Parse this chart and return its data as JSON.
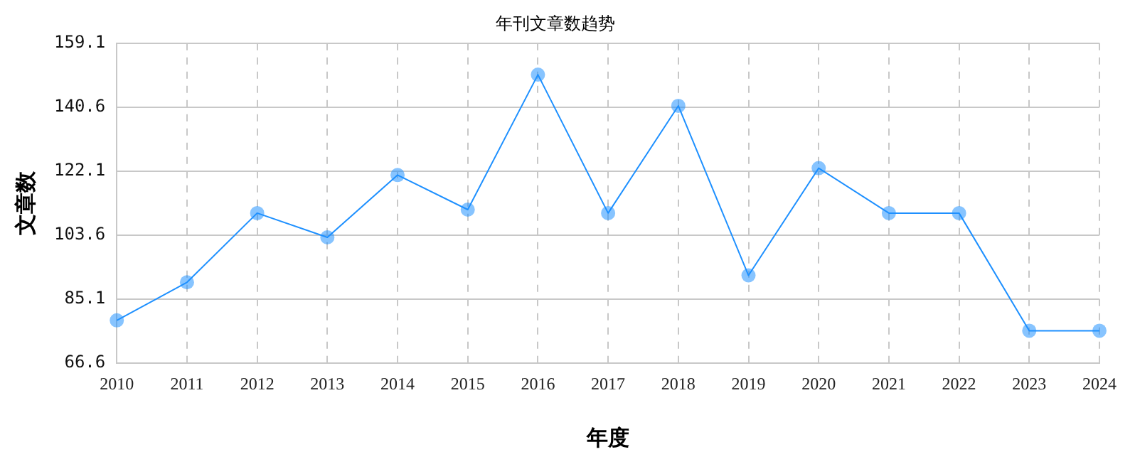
{
  "chart_data": {
    "type": "line",
    "title": "年刊文章数趋势",
    "xlabel": "年度",
    "ylabel": "文章数",
    "categories": [
      "2010",
      "2011",
      "2012",
      "2013",
      "2014",
      "2015",
      "2016",
      "2017",
      "2018",
      "2019",
      "2020",
      "2021",
      "2022",
      "2023",
      "2024"
    ],
    "series": [
      {
        "color": "#1e90ff",
        "values": [
          79,
          90,
          110,
          103,
          121,
          111,
          150,
          110,
          141,
          92,
          123,
          110,
          110,
          76,
          76
        ]
      }
    ],
    "ylim": [
      66.6,
      159.1
    ],
    "yticks": [
      66.6,
      85.1,
      103.6,
      122.1,
      140.6,
      159.1
    ],
    "grid": true,
    "marker": "circle",
    "line_style": "solid",
    "legend": false
  }
}
